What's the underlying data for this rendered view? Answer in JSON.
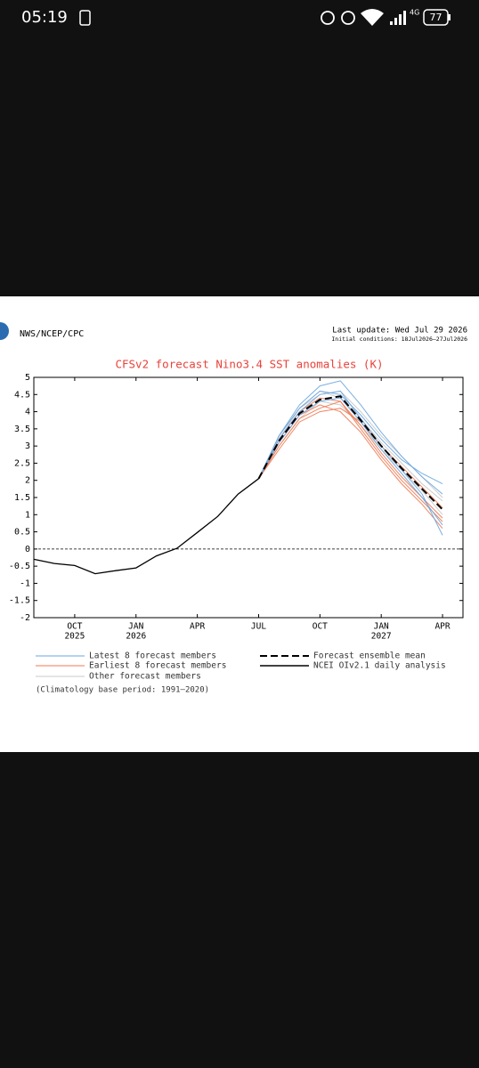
{
  "status_bar": {
    "time": "05:19",
    "network": "4G",
    "battery": "77"
  },
  "chart_data": {
    "type": "line",
    "source": "NWS/NCEP/CPC",
    "last_update": "Last update: Wed Jul 29 2026",
    "initial_conditions": "Initial conditions: 18Jul2026–27Jul2026",
    "title": "CFSv2 forecast Nino3.4 SST anomalies (K)",
    "note": "(Climatology base period: 1991–2020)",
    "xlim": [
      0,
      21
    ],
    "xticks": [
      {
        "value": 2,
        "label": "OCT",
        "year": "2025"
      },
      {
        "value": 5,
        "label": "JAN",
        "year": "2026"
      },
      {
        "value": 8,
        "label": "APR"
      },
      {
        "value": 11,
        "label": "JUL"
      },
      {
        "value": 14,
        "label": "OCT"
      },
      {
        "value": 17,
        "label": "JAN",
        "year": "2027"
      },
      {
        "value": 20,
        "label": "APR"
      }
    ],
    "ylim": [
      -2,
      5
    ],
    "yticks": [
      -2,
      -1.5,
      -1,
      -0.5,
      0,
      0.5,
      1,
      1.5,
      2,
      2.5,
      3,
      3.5,
      4,
      4.5,
      5
    ],
    "reference_line": 0,
    "forecast_x": [
      11,
      12,
      13,
      14,
      15,
      16,
      17,
      18,
      19,
      20
    ],
    "member_groups": [
      {
        "name": "Other forecast members",
        "color": "#c8c8c8",
        "members": [
          [
            2.05,
            3.3,
            4.1,
            4.6,
            4.4,
            3.8,
            3.1,
            2.5,
            1.9,
            1.4
          ],
          [
            2.05,
            3.0,
            3.8,
            4.3,
            4.2,
            3.6,
            2.9,
            2.3,
            1.7,
            1.0
          ],
          [
            2.05,
            3.2,
            4.1,
            4.5,
            4.6,
            4.0,
            3.3,
            2.7,
            2.1,
            1.5
          ]
        ]
      },
      {
        "name": "Earliest 8 forecast members",
        "color": "#f07850",
        "members": [
          [
            2.05,
            3.0,
            3.8,
            4.1,
            4.3,
            3.6,
            2.8,
            2.1,
            1.5,
            0.9
          ],
          [
            2.05,
            3.2,
            4.0,
            4.4,
            4.3,
            3.5,
            2.7,
            2.0,
            1.4,
            0.8
          ],
          [
            2.05,
            2.9,
            3.7,
            4.0,
            4.1,
            3.7,
            3.0,
            2.4,
            1.8,
            1.2
          ],
          [
            2.05,
            3.1,
            3.9,
            4.2,
            4.0,
            3.4,
            2.6,
            1.9,
            1.3,
            0.6
          ]
        ]
      },
      {
        "name": "Latest 8 forecast members",
        "color": "#6aa6e0",
        "members": [
          [
            2.05,
            3.3,
            4.2,
            4.75,
            4.9,
            4.2,
            3.4,
            2.7,
            2.1,
            1.6
          ],
          [
            2.05,
            3.2,
            4.0,
            4.5,
            4.6,
            3.8,
            3.0,
            2.3,
            1.6,
            0.4
          ],
          [
            2.05,
            3.3,
            4.1,
            4.6,
            4.5,
            3.9,
            3.2,
            2.6,
            2.2,
            1.9
          ],
          [
            2.05,
            3.1,
            3.9,
            4.3,
            4.4,
            3.7,
            2.9,
            2.2,
            1.5,
            0.7
          ]
        ]
      }
    ],
    "ensemble_mean": {
      "name": "Forecast ensemble mean",
      "color": "#000000",
      "values": [
        2.05,
        3.15,
        3.95,
        4.35,
        4.45,
        3.75,
        3.0,
        2.35,
        1.75,
        1.15
      ]
    },
    "analysis": {
      "name": "NCEI OIv2.1 daily analysis",
      "color": "#000000",
      "x": [
        0,
        1,
        2,
        3,
        4,
        5,
        6,
        7,
        8,
        9,
        10,
        11
      ],
      "values": [
        -0.3,
        -0.42,
        -0.48,
        -0.72,
        -0.63,
        -0.55,
        -0.2,
        0.02,
        0.48,
        0.95,
        1.6,
        2.05
      ]
    }
  }
}
